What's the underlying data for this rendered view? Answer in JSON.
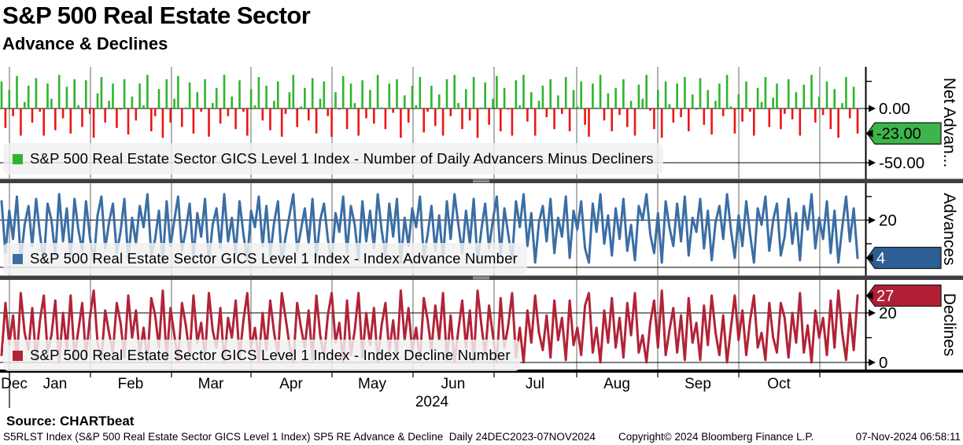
{
  "title": "S&P 500 Real Estate Sector",
  "subtitle": "Advance & Declines",
  "source": "Source: CHARTbeat",
  "footer": {
    "left": "S5RLST Index (S&P 500 Real Estate Sector GICS Level 1 Index) SP5 RE Advance & Decline  Daily 24DEC2023-07NOV2024",
    "copyright": "Copyright© 2024 Bloomberg Finance L.P.",
    "datetime": "07-Nov-2024 06:58:11"
  },
  "x_axis": {
    "months": [
      "Dec",
      "Jan",
      "Feb",
      "Mar",
      "Apr",
      "May",
      "Jun",
      "Jul",
      "Aug",
      "Sep",
      "Oct"
    ],
    "year": "2024"
  },
  "panels": [
    {
      "title": "Net Advan...",
      "legend": "S&P 500 Real Estate Sector GICS Level 1 Index - Number of Daily Advancers Minus Decliners",
      "series_color": "#2eb52c",
      "up_color": "#2eb52c",
      "down_color": "#ee1515",
      "yticks": [
        {
          "value": 0,
          "label": "0.00"
        },
        {
          "value": -50,
          "label": "-50.00"
        }
      ],
      "minor_ticks": [
        25
      ],
      "badge": {
        "label": "-23.00",
        "fill": "#3cb54a",
        "text_color": "#000000",
        "value": -23
      }
    },
    {
      "title": "Advances",
      "legend": "S&P 500 Real Estate Sector GICS Level 1 Index - Index Advance Number",
      "series_color": "#3a6ea5",
      "yticks": [
        {
          "value": 20,
          "label": "20"
        },
        {
          "value": 0,
          "label": ""
        }
      ],
      "minor_ticks": [
        30,
        10
      ],
      "badge": {
        "label": "4",
        "fill": "#2d5f96",
        "text_color": "#ffffff",
        "value": 4
      }
    },
    {
      "title": "Declines",
      "legend": "S&P 500 Real Estate Sector GICS Level 1 Index - Index Decline Number",
      "series_color": "#b22337",
      "yticks": [
        {
          "value": 20,
          "label": "20"
        },
        {
          "value": 0,
          "label": "0"
        }
      ],
      "minor_ticks": [
        10
      ],
      "badge": {
        "label": "27",
        "fill": "#b01f33",
        "text_color": "#ffffff",
        "value": 27
      }
    }
  ],
  "chart_data": [
    {
      "type": "bar",
      "title": "Number of Daily Advancers Minus Decliners",
      "x_range": [
        "24DEC2023",
        "07NOV2024"
      ],
      "frequency": "Daily",
      "ylim": [
        -66,
        38
      ],
      "yticks": [
        25,
        0,
        -25,
        -50
      ],
      "last_value": -23,
      "values": [
        25,
        -18,
        17,
        -7,
        30,
        -25,
        6,
        21,
        -13,
        28,
        -3,
        -25,
        23,
        9,
        -20,
        31,
        -9,
        20,
        -23,
        27,
        3,
        -17,
        26,
        -5,
        -27,
        14,
        29,
        -13,
        7,
        23,
        -18,
        -1,
        27,
        -24,
        11,
        -11,
        23,
        3,
        31,
        -21,
        -7,
        18,
        -27,
        27,
        -13,
        9,
        30,
        -17,
        1,
        24,
        -23,
        15,
        -3,
        27,
        -26,
        5,
        19,
        -14,
        31,
        -7,
        11,
        -19,
        26,
        -3,
        -25,
        18,
        3,
        29,
        -11,
        21,
        -20,
        7,
        25,
        -26,
        -5,
        15,
        31,
        -17,
        2,
        19,
        -11,
        28,
        -23,
        9,
        25,
        -7,
        -26,
        15,
        -1,
        30,
        -19,
        23,
        5,
        -25,
        26,
        -9,
        17,
        -14,
        31,
        1,
        -19,
        23,
        -4,
        27,
        -27,
        12,
        -13,
        21,
        3,
        29,
        -22,
        -3,
        21,
        -16,
        13,
        -25,
        27,
        -7,
        31,
        5,
        -19,
        18,
        -11,
        29,
        -27,
        1,
        24,
        -15,
        9,
        30,
        -21,
        19,
        -1,
        -25,
        26,
        3,
        31,
        -12,
        15,
        -25,
        7,
        21,
        -8,
        27,
        -19,
        12,
        -5,
        29,
        -21,
        17,
        2,
        25,
        -15,
        -26,
        23,
        1,
        31,
        -11,
        14,
        -21,
        19,
        -6,
        27,
        -17,
        7,
        -25,
        22,
        9,
        31,
        -2,
        -19,
        17,
        -27,
        25,
        4,
        -13,
        23,
        -8,
        29,
        -21,
        13,
        -1,
        28,
        -15,
        17,
        -24,
        7,
        23,
        -7,
        31,
        2,
        -23,
        13,
        -12,
        25,
        -3,
        -25,
        19,
        6,
        29,
        -17,
        10,
        23,
        -19,
        -5,
        27,
        -10,
        15,
        -25,
        22,
        1,
        31,
        -13,
        11,
        -6,
        25,
        -19,
        18,
        -27,
        5,
        29,
        -9,
        20,
        -23
      ]
    },
    {
      "type": "line",
      "title": "Index Advance Number",
      "x_range": [
        "24DEC2023",
        "07NOV2024"
      ],
      "frequency": "Daily",
      "ylim": [
        0,
        31
      ],
      "yticks": [
        0,
        10,
        20,
        30
      ],
      "last_value": 4,
      "values": [
        28,
        6,
        24,
        12,
        30,
        3,
        18,
        26,
        9,
        29,
        14,
        2,
        27,
        20,
        5,
        31,
        11,
        25,
        4,
        29,
        16,
        7,
        28,
        13,
        2,
        22,
        30,
        8,
        19,
        27,
        6,
        15,
        29,
        3,
        21,
        10,
        26,
        17,
        31,
        5,
        12,
        24,
        2,
        28,
        9,
        20,
        30,
        7,
        16,
        27,
        4,
        23,
        13,
        29,
        2,
        18,
        25,
        8,
        31,
        11,
        21,
        6,
        28,
        14,
        3,
        24,
        17,
        30,
        9,
        26,
        5,
        19,
        28,
        2,
        13,
        22,
        31,
        7,
        16,
        25,
        10,
        29,
        4,
        20,
        27,
        12,
        2,
        23,
        15,
        30,
        6,
        26,
        18,
        3,
        28,
        11,
        24,
        8,
        31,
        16,
        5,
        27,
        13,
        29,
        2,
        21,
        9,
        25,
        17,
        30,
        4,
        14,
        26,
        7,
        22,
        3,
        28,
        12,
        31,
        18,
        6,
        24,
        10,
        29,
        2,
        16,
        27,
        8,
        20,
        30,
        5,
        25,
        14,
        3,
        28,
        17,
        31,
        9,
        23,
        2,
        19,
        26,
        11,
        29,
        6,
        21,
        13,
        30,
        4,
        24,
        16,
        28,
        8,
        2,
        27,
        15,
        31,
        10,
        22,
        5,
        25,
        12,
        29,
        7,
        18,
        3,
        26,
        20,
        31,
        14,
        6,
        23,
        2,
        28,
        17,
        9,
        27,
        11,
        30,
        5,
        21,
        15,
        29,
        8,
        24,
        3,
        19,
        26,
        12,
        31,
        16,
        4,
        22,
        9,
        28,
        14,
        2,
        25,
        18,
        30,
        7,
        20,
        27,
        5,
        13,
        29,
        10,
        23,
        3,
        26,
        16,
        31,
        8,
        21,
        12,
        28,
        6,
        24,
        2,
        17,
        30,
        11,
        25,
        4
      ]
    },
    {
      "type": "line",
      "title": "Index Decline Number",
      "x_range": [
        "24DEC2023",
        "07NOV2024"
      ],
      "frequency": "Daily",
      "ylim": [
        0,
        31
      ],
      "yticks": [
        0,
        10,
        20,
        30
      ],
      "last_value": 27,
      "values": [
        3,
        24,
        7,
        19,
        0,
        28,
        12,
        5,
        22,
        1,
        17,
        27,
        4,
        11,
        25,
        0,
        20,
        5,
        27,
        2,
        13,
        24,
        2,
        18,
        29,
        8,
        1,
        21,
        12,
        4,
        24,
        16,
        2,
        27,
        10,
        21,
        3,
        14,
        0,
        26,
        19,
        6,
        29,
        1,
        22,
        11,
        0,
        24,
        15,
        3,
        27,
        8,
        16,
        2,
        28,
        13,
        6,
        22,
        0,
        18,
        10,
        25,
        2,
        17,
        28,
        6,
        14,
        1,
        20,
        5,
        25,
        12,
        3,
        28,
        18,
        7,
        0,
        24,
        14,
        6,
        21,
        1,
        27,
        11,
        2,
        19,
        28,
        8,
        16,
        0,
        25,
        3,
        13,
        28,
        2,
        20,
        7,
        22,
        0,
        15,
        24,
        4,
        17,
        2,
        29,
        9,
        22,
        4,
        14,
        1,
        26,
        17,
        5,
        23,
        9,
        28,
        1,
        19,
        0,
        13,
        25,
        6,
        21,
        0,
        29,
        15,
        3,
        23,
        11,
        0,
        26,
        6,
        15,
        28,
        2,
        14,
        0,
        21,
        8,
        27,
        12,
        5,
        19,
        2,
        25,
        9,
        18,
        1,
        25,
        7,
        14,
        3,
        23,
        28,
        4,
        14,
        0,
        21,
        8,
        26,
        6,
        18,
        2,
        24,
        11,
        28,
        4,
        11,
        0,
        16,
        25,
        6,
        29,
        3,
        13,
        22,
        4,
        19,
        1,
        26,
        8,
        16,
        1,
        23,
        7,
        27,
        12,
        3,
        19,
        0,
        14,
        27,
        9,
        21,
        3,
        17,
        27,
        6,
        12,
        1,
        24,
        10,
        4,
        24,
        18,
        2,
        20,
        8,
        28,
        4,
        15,
        0,
        21,
        10,
        18,
        3,
        25,
        6,
        29,
        12,
        1,
        20,
        5,
        27
      ]
    }
  ]
}
